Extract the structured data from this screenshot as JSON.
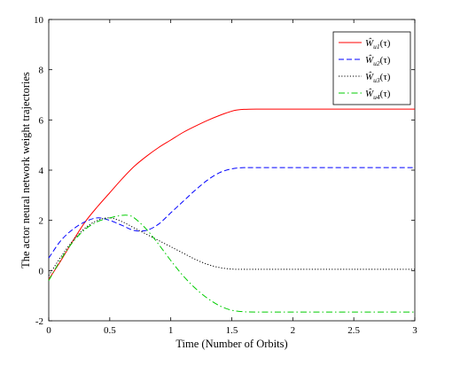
{
  "chart_data": {
    "type": "line",
    "title": "",
    "xlabel": "Time (Number of Orbits)",
    "ylabel": "The actor neural network weight trajectories",
    "xlim": [
      0,
      3
    ],
    "ylim": [
      -2,
      10
    ],
    "xticks": [
      0,
      0.5,
      1,
      1.5,
      2,
      2.5,
      3
    ],
    "xtick_labels": [
      "0",
      "0.5",
      "1",
      "1.5",
      "2",
      "2.5",
      "3"
    ],
    "yticks": [
      -2,
      0,
      2,
      4,
      6,
      8,
      10
    ],
    "ytick_labels": [
      "-2",
      "0",
      "2",
      "4",
      "6",
      "8",
      "10"
    ],
    "grid": false,
    "legend_position": "top-right",
    "series": [
      {
        "name": "Ŵu1(τ)",
        "legend": {
          "base": "Ŵ",
          "sub": "u1",
          "arg": "(τ)"
        },
        "color": "#ff0000",
        "style": "solid",
        "x": [
          0,
          0.1,
          0.2,
          0.3,
          0.4,
          0.5,
          0.6,
          0.7,
          0.8,
          0.9,
          1.0,
          1.1,
          1.2,
          1.3,
          1.4,
          1.5,
          1.55,
          1.6,
          1.7,
          1.8,
          2.0,
          2.5,
          3.0
        ],
        "y": [
          -0.35,
          0.4,
          1.2,
          1.95,
          2.55,
          3.1,
          3.65,
          4.15,
          4.55,
          4.9,
          5.2,
          5.5,
          5.75,
          5.98,
          6.18,
          6.35,
          6.4,
          6.42,
          6.43,
          6.43,
          6.43,
          6.43,
          6.43
        ]
      },
      {
        "name": "Ŵu2(τ)",
        "legend": {
          "base": "Ŵ",
          "sub": "u2",
          "arg": "(τ)"
        },
        "color": "#0000ff",
        "style": "dashed",
        "x": [
          0,
          0.1,
          0.2,
          0.3,
          0.4,
          0.5,
          0.6,
          0.7,
          0.8,
          0.9,
          1.0,
          1.1,
          1.2,
          1.3,
          1.4,
          1.5,
          1.6,
          1.7,
          2.0,
          2.5,
          3.0
        ],
        "y": [
          0.5,
          1.2,
          1.65,
          1.95,
          2.1,
          2.0,
          1.8,
          1.6,
          1.6,
          1.85,
          2.3,
          2.75,
          3.2,
          3.6,
          3.9,
          4.05,
          4.1,
          4.1,
          4.1,
          4.1,
          4.1
        ]
      },
      {
        "name": "Ŵu3(τ)",
        "legend": {
          "base": "Ŵ",
          "sub": "u3",
          "arg": "(τ)"
        },
        "color": "#000000",
        "style": "dotted",
        "x": [
          0,
          0.1,
          0.2,
          0.3,
          0.4,
          0.5,
          0.6,
          0.7,
          0.8,
          0.9,
          1.0,
          1.1,
          1.2,
          1.3,
          1.4,
          1.5,
          1.6,
          1.7,
          2.0,
          2.5,
          3.0
        ],
        "y": [
          -0.2,
          0.55,
          1.2,
          1.7,
          2.0,
          2.1,
          1.95,
          1.7,
          1.45,
          1.2,
          0.95,
          0.7,
          0.45,
          0.25,
          0.12,
          0.06,
          0.05,
          0.05,
          0.05,
          0.05,
          0.05
        ]
      },
      {
        "name": "Ŵu4(τ)",
        "legend": {
          "base": "Ŵ",
          "sub": "u4",
          "arg": "(τ)"
        },
        "color": "#00cc00",
        "style": "dashdot",
        "x": [
          0,
          0.1,
          0.2,
          0.3,
          0.4,
          0.5,
          0.6,
          0.65,
          0.7,
          0.8,
          0.9,
          1.0,
          1.1,
          1.2,
          1.3,
          1.4,
          1.5,
          1.6,
          1.7,
          2.0,
          2.5,
          3.0
        ],
        "y": [
          -0.4,
          0.45,
          1.15,
          1.65,
          1.95,
          2.1,
          2.2,
          2.2,
          2.1,
          1.65,
          1.05,
          0.4,
          -0.2,
          -0.7,
          -1.1,
          -1.4,
          -1.58,
          -1.64,
          -1.65,
          -1.65,
          -1.65,
          -1.65
        ]
      }
    ]
  }
}
